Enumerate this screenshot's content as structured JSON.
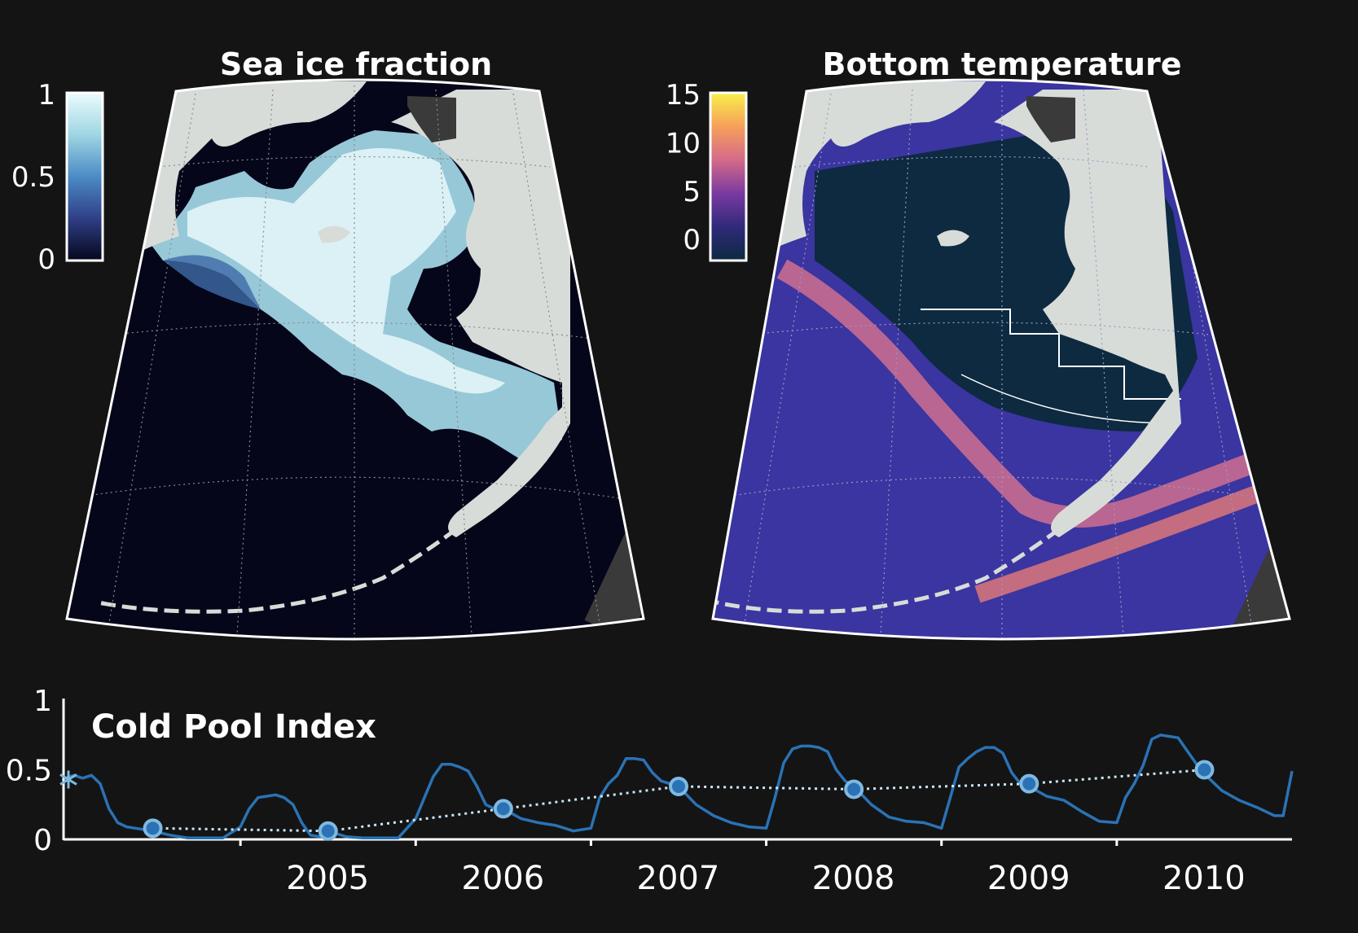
{
  "panels": {
    "sea_ice": {
      "title": "Sea ice fraction",
      "colorbar": {
        "ticks": [
          "1",
          "0.5",
          "0"
        ],
        "range": [
          0,
          1
        ],
        "colors": [
          "#05061c",
          "#2f3f86",
          "#4b8bc6",
          "#9fd6e3",
          "#ecfbfd"
        ]
      }
    },
    "bottom_temp": {
      "title": "Bottom temperature",
      "colorbar": {
        "ticks": [
          "15",
          "10",
          "5",
          "0"
        ],
        "range": [
          -2,
          15
        ],
        "colors": [
          "#0d2a40",
          "#2f2a7a",
          "#7a3aa0",
          "#d46a8a",
          "#f6a05a",
          "#f8f04a"
        ]
      }
    }
  },
  "colors": {
    "background": "#141414",
    "land": "#d8dcd8",
    "series": "#2a72b5",
    "marker": "#7fb9e0",
    "trend": "#c8e6f5"
  },
  "chart_data": {
    "type": "line",
    "title": "Cold Pool Index",
    "xlabel": "",
    "ylabel": "",
    "xlim": [
      2004.0,
      2011.0
    ],
    "ylim": [
      0,
      1
    ],
    "yticks": [
      "1",
      "0.5",
      "0"
    ],
    "xticks": [
      "2005",
      "2006",
      "2007",
      "2008",
      "2009",
      "2010"
    ],
    "series": [
      {
        "style": "solid",
        "x": [
          2004.0,
          2004.05,
          2004.1,
          2004.15,
          2004.2,
          2004.25,
          2004.3,
          2004.35,
          2004.4,
          2004.5,
          2004.6,
          2004.7,
          2004.8,
          2004.9,
          2005.0,
          2005.05,
          2005.1,
          2005.15,
          2005.2,
          2005.25,
          2005.3,
          2005.35,
          2005.4,
          2005.45,
          2005.5,
          2005.6,
          2005.7,
          2005.8,
          2005.9,
          2006.0,
          2006.05,
          2006.1,
          2006.15,
          2006.2,
          2006.25,
          2006.3,
          2006.35,
          2006.4,
          2006.45,
          2006.5,
          2006.6,
          2006.7,
          2006.8,
          2006.9,
          2007.0,
          2007.05,
          2007.1,
          2007.15,
          2007.2,
          2007.25,
          2007.3,
          2007.35,
          2007.4,
          2007.45,
          2007.5,
          2007.6,
          2007.7,
          2007.8,
          2007.9,
          2008.0,
          2008.05,
          2008.1,
          2008.15,
          2008.2,
          2008.25,
          2008.3,
          2008.35,
          2008.4,
          2008.45,
          2008.5,
          2008.6,
          2008.7,
          2008.8,
          2008.9,
          2009.0,
          2009.05,
          2009.1,
          2009.15,
          2009.2,
          2009.25,
          2009.3,
          2009.35,
          2009.4,
          2009.45,
          2009.5,
          2009.6,
          2009.7,
          2009.8,
          2009.9,
          2010.0,
          2010.05,
          2010.1,
          2010.15,
          2010.2,
          2010.25,
          2010.3,
          2010.35,
          2010.4,
          2010.45,
          2010.5,
          2010.6,
          2010.7,
          2010.8,
          2010.9,
          2010.95,
          2011.0
        ],
        "y": [
          0.44,
          0.46,
          0.44,
          0.46,
          0.4,
          0.22,
          0.12,
          0.09,
          0.08,
          0.06,
          0.03,
          0.01,
          0.01,
          0.01,
          0.09,
          0.22,
          0.3,
          0.31,
          0.32,
          0.3,
          0.25,
          0.12,
          0.03,
          0.02,
          0.06,
          0.02,
          0.01,
          0.01,
          0.01,
          0.15,
          0.3,
          0.45,
          0.54,
          0.54,
          0.52,
          0.49,
          0.38,
          0.25,
          0.22,
          0.22,
          0.15,
          0.12,
          0.1,
          0.06,
          0.08,
          0.3,
          0.4,
          0.46,
          0.58,
          0.58,
          0.57,
          0.48,
          0.42,
          0.4,
          0.38,
          0.25,
          0.17,
          0.12,
          0.09,
          0.08,
          0.3,
          0.55,
          0.65,
          0.67,
          0.67,
          0.66,
          0.63,
          0.5,
          0.42,
          0.38,
          0.25,
          0.16,
          0.13,
          0.12,
          0.08,
          0.3,
          0.52,
          0.58,
          0.63,
          0.66,
          0.66,
          0.62,
          0.48,
          0.4,
          0.38,
          0.31,
          0.28,
          0.2,
          0.13,
          0.12,
          0.3,
          0.4,
          0.53,
          0.72,
          0.75,
          0.74,
          0.73,
          0.64,
          0.55,
          0.47,
          0.35,
          0.28,
          0.23,
          0.17,
          0.17,
          0.49
        ]
      },
      {
        "style": "dotted",
        "x": [
          2004.5,
          2005.5,
          2006.5,
          2007.5,
          2008.5,
          2009.5,
          2010.5
        ],
        "y": [
          0.08,
          0.06,
          0.22,
          0.38,
          0.36,
          0.4,
          0.5
        ]
      }
    ],
    "start_marker": {
      "x": 2004.0,
      "y": 0.43
    }
  }
}
